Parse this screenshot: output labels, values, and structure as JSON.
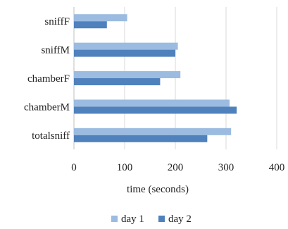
{
  "chart_data": {
    "type": "bar",
    "orientation": "horizontal",
    "categories": [
      "sniffF",
      "sniffM",
      "chamberF",
      "chamberM",
      "totalsniff"
    ],
    "series": [
      {
        "name": "day 1",
        "values": [
          105,
          205,
          210,
          307,
          310
        ],
        "color": "#9bbbe0"
      },
      {
        "name": "day 2",
        "values": [
          65,
          200,
          170,
          321,
          263
        ],
        "color": "#4f81bd"
      }
    ],
    "xlabel": "time (seconds)",
    "ylabel": "",
    "title": "",
    "xlim": [
      0,
      400
    ],
    "xticks": [
      0,
      100,
      200,
      300,
      400
    ],
    "grid": "vertical",
    "legend_position": "bottom"
  }
}
